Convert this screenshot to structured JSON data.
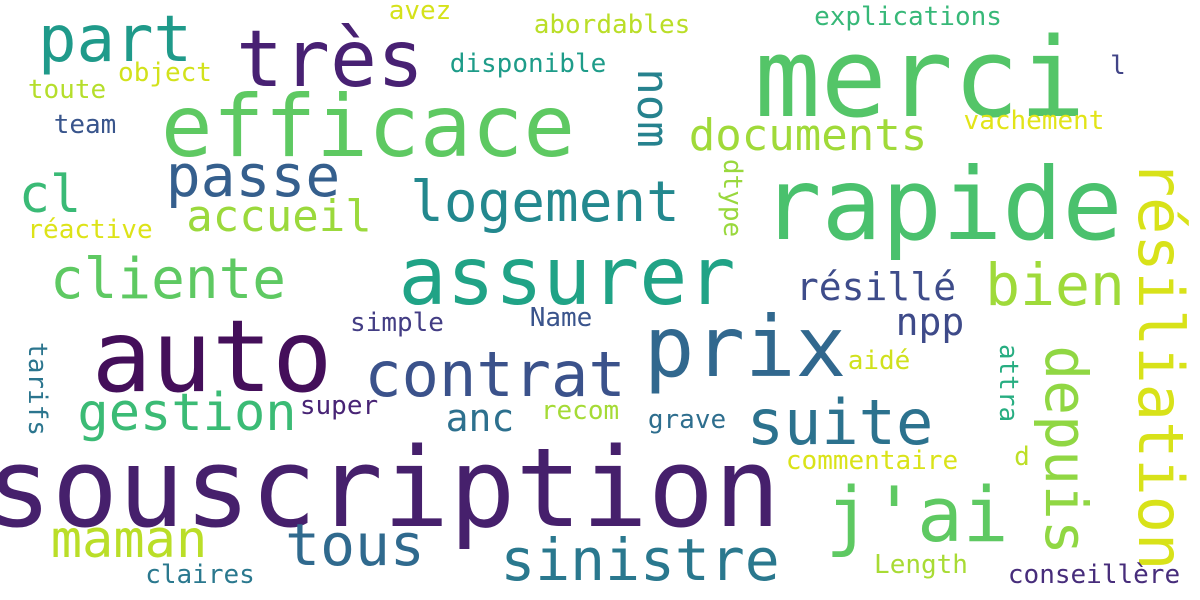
{
  "words": [
    {
      "text": "merci",
      "color": "#54c568",
      "vertical": false
    },
    {
      "text": "souscription",
      "color": "#46206c",
      "vertical": false
    },
    {
      "text": "rapide",
      "color": "#4ac16d",
      "vertical": false
    },
    {
      "text": "efficace",
      "color": "#5ec962",
      "vertical": false
    },
    {
      "text": "auto",
      "color": "#440f5a",
      "vertical": false
    },
    {
      "text": "assurer",
      "color": "#20a386",
      "vertical": false
    },
    {
      "text": "très",
      "color": "#482173",
      "vertical": false
    },
    {
      "text": "prix",
      "color": "#31688e",
      "vertical": false
    },
    {
      "text": "résiliation",
      "color": "#d8e219",
      "vertical": true
    },
    {
      "text": "j'ai",
      "color": "#5ec962",
      "vertical": false
    },
    {
      "text": "depuis",
      "color": "#90d743",
      "vertical": true
    },
    {
      "text": "contrat",
      "color": "#3b528b",
      "vertical": false
    },
    {
      "text": "suite",
      "color": "#2c728e",
      "vertical": false
    },
    {
      "text": "part",
      "color": "#1f9a8a",
      "vertical": false
    },
    {
      "text": "logement",
      "color": "#23888e",
      "vertical": false
    },
    {
      "text": "cliente",
      "color": "#5ec962",
      "vertical": false
    },
    {
      "text": "bien",
      "color": "#9fda3a",
      "vertical": false
    },
    {
      "text": "sinistre",
      "color": "#2a788e",
      "vertical": false
    },
    {
      "text": "tous",
      "color": "#306a8e",
      "vertical": false
    },
    {
      "text": "gestion",
      "color": "#3bbb75",
      "vertical": false
    },
    {
      "text": "maman",
      "color": "#bade28",
      "vertical": false
    },
    {
      "text": "passe",
      "color": "#355f8d",
      "vertical": false
    },
    {
      "text": "cl",
      "color": "#3aba76",
      "vertical": false
    },
    {
      "text": "nom",
      "color": "#26828e",
      "vertical": true
    },
    {
      "text": "documents",
      "color": "#a0da39",
      "vertical": false
    },
    {
      "text": "accueil",
      "color": "#9bd93c",
      "vertical": false
    },
    {
      "text": "résillé",
      "color": "#3e4c8a",
      "vertical": false
    },
    {
      "text": "npp",
      "color": "#3e4a89",
      "vertical": false
    },
    {
      "text": "anc",
      "color": "#2d708e",
      "vertical": false
    },
    {
      "text": "abordables",
      "color": "#bade28",
      "vertical": false
    },
    {
      "text": "avez",
      "color": "#d5e21a",
      "vertical": false
    },
    {
      "text": "explications",
      "color": "#37b878",
      "vertical": false
    },
    {
      "text": "disponible",
      "color": "#1e9c89",
      "vertical": false
    },
    {
      "text": "object",
      "color": "#d2e21b",
      "vertical": false
    },
    {
      "text": "toute",
      "color": "#b5de2b",
      "vertical": false
    },
    {
      "text": "team",
      "color": "#39558c",
      "vertical": false
    },
    {
      "text": "vachement",
      "color": "#e2e418",
      "vertical": false
    },
    {
      "text": "l",
      "color": "#414487",
      "vertical": false
    },
    {
      "text": "dtype",
      "color": "#99d83d",
      "vertical": true
    },
    {
      "text": "réactive",
      "color": "#dde318",
      "vertical": false
    },
    {
      "text": "simple",
      "color": "#433d84",
      "vertical": false
    },
    {
      "text": "Name",
      "color": "#3a548c",
      "vertical": false
    },
    {
      "text": "tarifs",
      "color": "#2b758e",
      "vertical": true
    },
    {
      "text": "super",
      "color": "#482475",
      "vertical": false
    },
    {
      "text": "recom",
      "color": "#a5db36",
      "vertical": false
    },
    {
      "text": "aidé",
      "color": "#d0e11c",
      "vertical": false
    },
    {
      "text": "attra",
      "color": "#27ad81",
      "vertical": true
    },
    {
      "text": "grave",
      "color": "#2e6e8e",
      "vertical": false
    },
    {
      "text": "commentaire",
      "color": "#dae319",
      "vertical": false
    },
    {
      "text": "d",
      "color": "#bddf26",
      "vertical": false
    },
    {
      "text": "claires",
      "color": "#2a788e",
      "vertical": false
    },
    {
      "text": "Length",
      "color": "#a8db34",
      "vertical": false
    },
    {
      "text": "conseillère",
      "color": "#472d7b",
      "vertical": false
    }
  ]
}
